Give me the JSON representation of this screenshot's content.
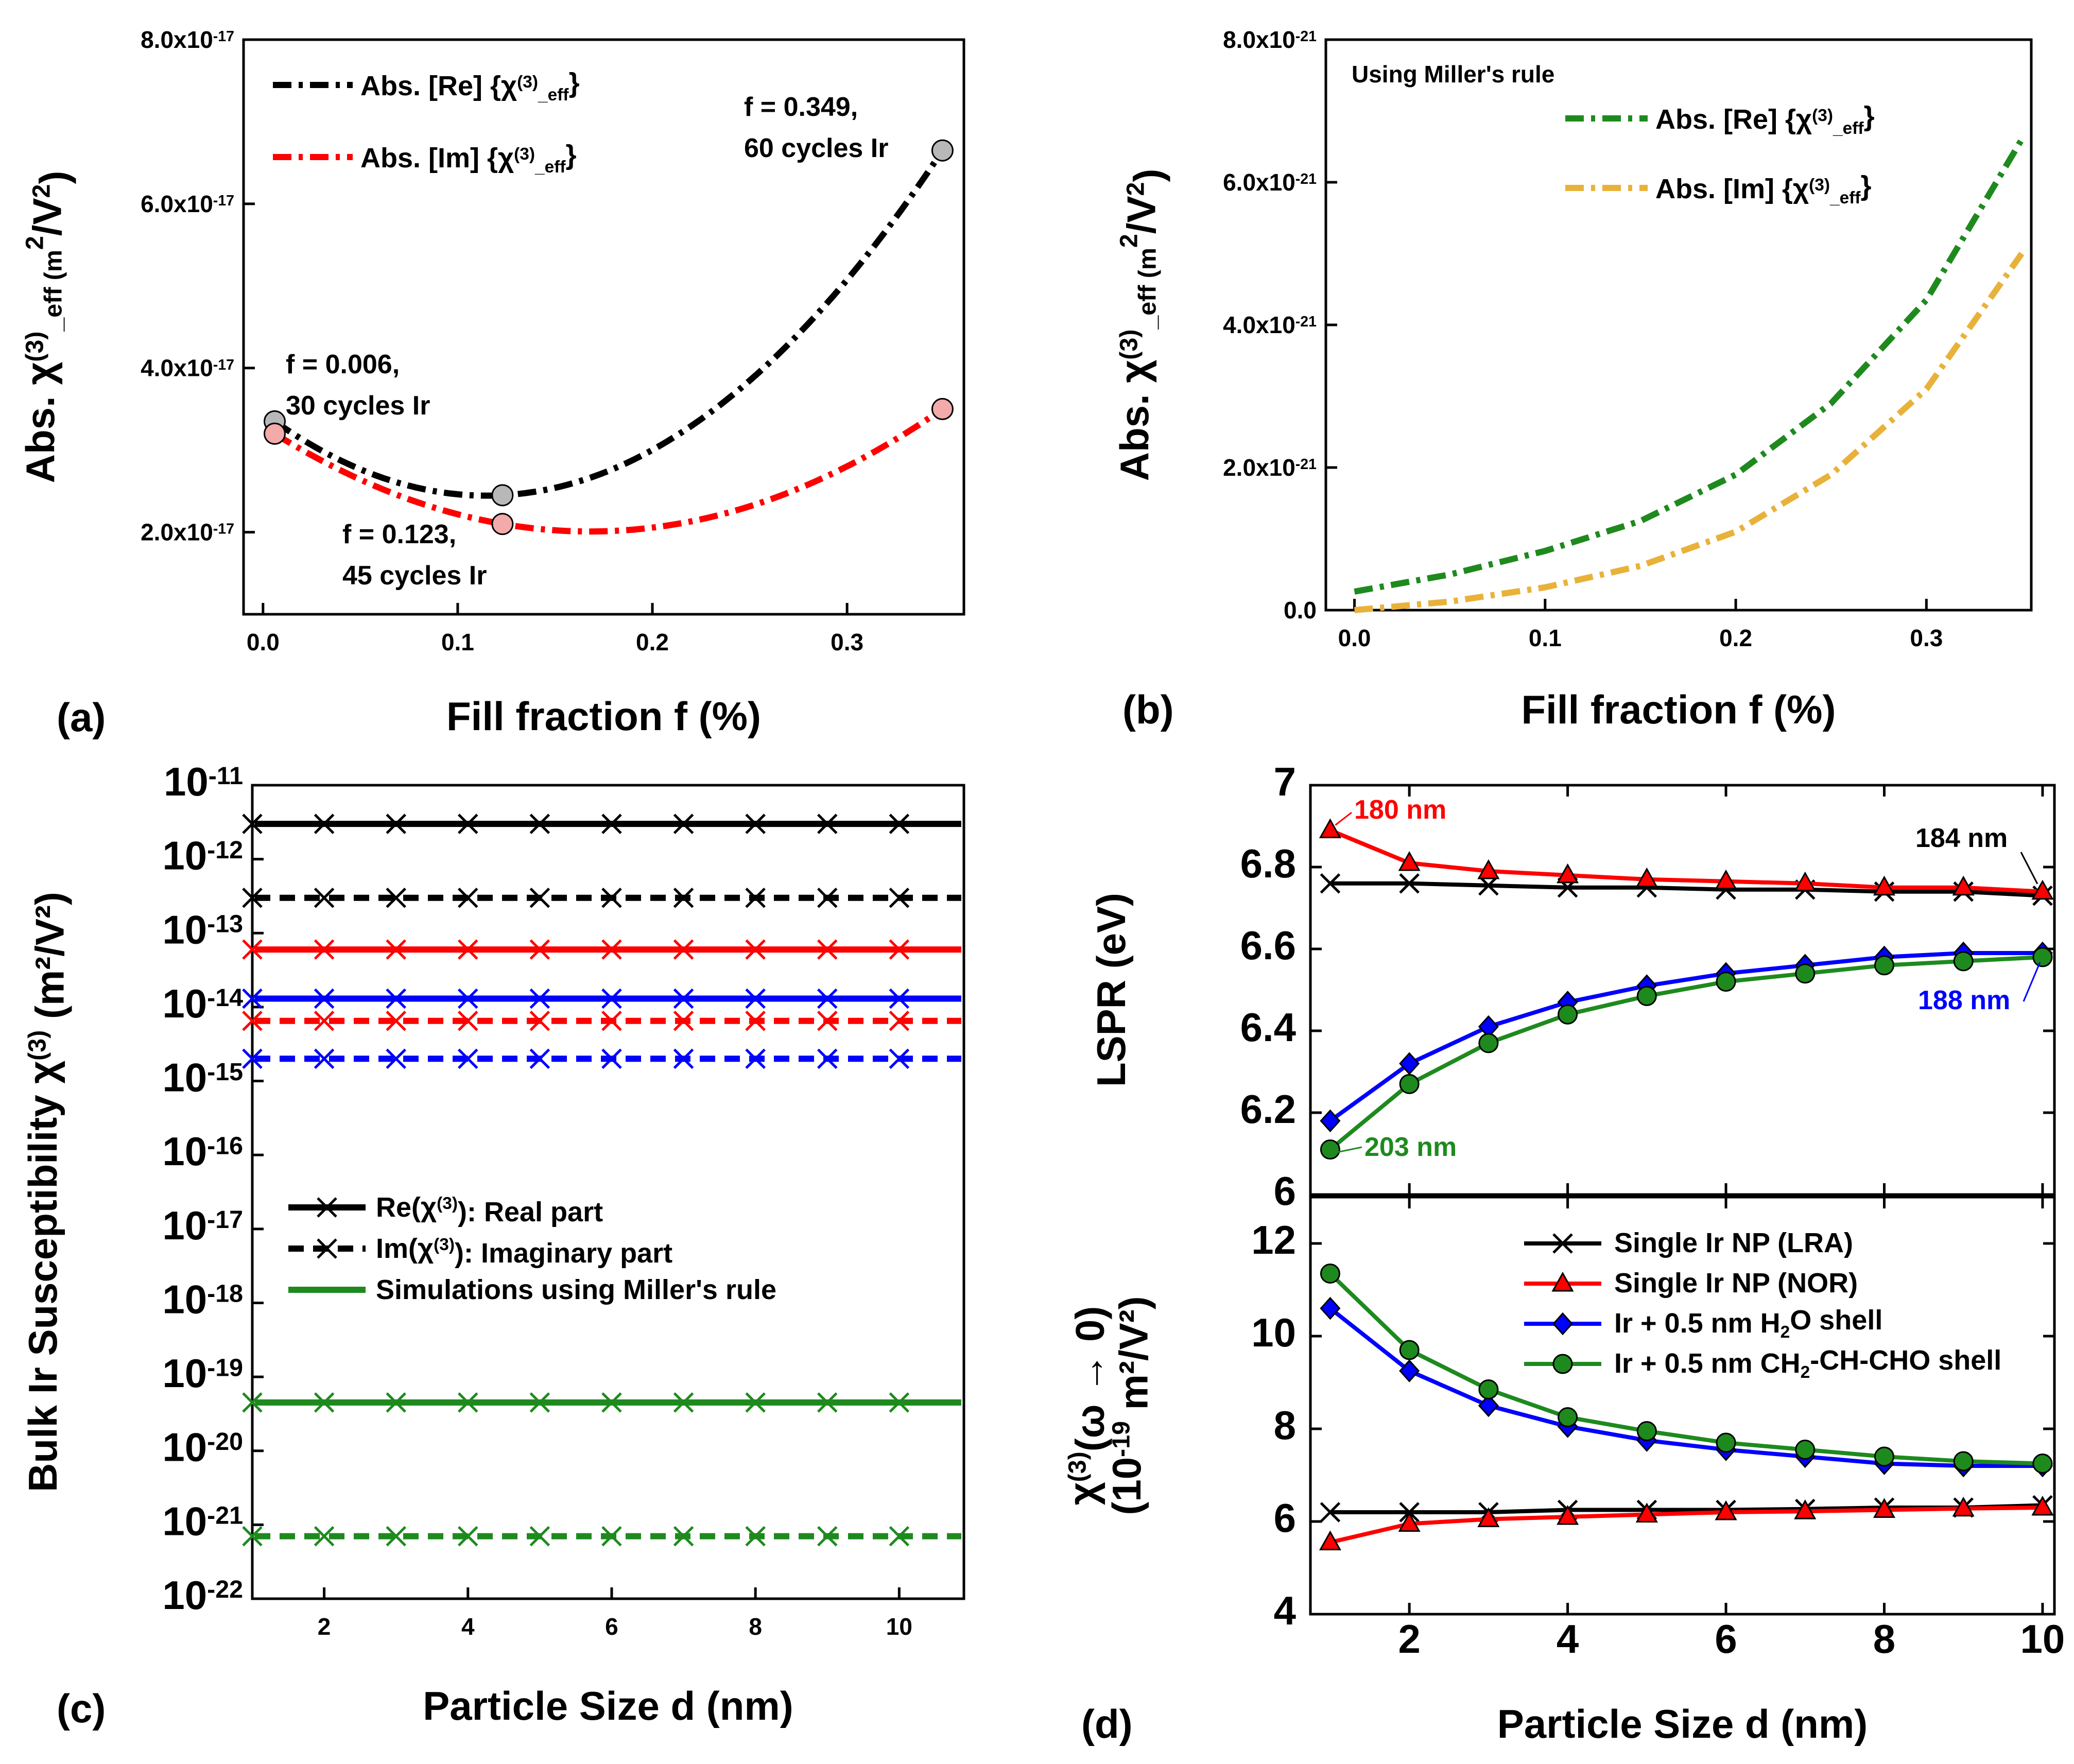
{
  "chart_data": [
    {
      "panel": "(a)",
      "type": "line",
      "xlabel": "Fill fraction f (%)",
      "ylabel": "Abs. χ(3)_eff (m2/V2)",
      "ylabel_main": "Abs. χ",
      "ylabel_sup": "(3)",
      "ylabel_tail": "_eff (m",
      "ylabel_sup2": "2",
      "ylabel_mid": "/V",
      "ylabel_sup3": "2",
      "ylabel_end": ")",
      "xlim": [
        -0.01,
        0.36
      ],
      "ylim": [
        1e-17,
        8e-17
      ],
      "xticks": [
        0.0,
        0.1,
        0.2,
        0.3
      ],
      "xtick_labels": [
        "0.0",
        "0.1",
        "0.2",
        "0.3"
      ],
      "yticks": [
        2e-17,
        4e-17,
        6e-17,
        8e-17
      ],
      "ytick_labels": [
        {
          "base": "2.0x10",
          "exp": "-17"
        },
        {
          "base": "4.0x10",
          "exp": "-17"
        },
        {
          "base": "6.0x10",
          "exp": "-17"
        },
        {
          "base": "8.0x10",
          "exp": "-17"
        }
      ],
      "series": [
        {
          "name": "Abs. [Re] {χ(3)_eff}",
          "legend_main": "Abs. [Re] {χ",
          "legend_sup": "(3)",
          "legend_sub": "_eff",
          "legend_end": "}",
          "color": "#000000",
          "points": [
            [
              0.006,
              3.35e-17
            ],
            [
              0.123,
              2.45e-17
            ],
            [
              0.349,
              6.65e-17
            ]
          ]
        },
        {
          "name": "Abs. [Im] {χ(3)_eff}",
          "legend_main": "Abs. [Im] {χ",
          "legend_sup": "(3)",
          "legend_sub": "_eff",
          "legend_end": "}",
          "color": "#ff0000",
          "points": [
            [
              0.006,
              3.2e-17
            ],
            [
              0.123,
              2.1e-17
            ],
            [
              0.349,
              3.5e-17
            ]
          ]
        }
      ],
      "annotations": [
        {
          "line1": "f = 0.006,",
          "line2": "30 cycles Ir"
        },
        {
          "line1": "f = 0.123,",
          "line2": "45 cycles Ir"
        },
        {
          "line1": "f = 0.349,",
          "line2": "60 cycles Ir"
        }
      ]
    },
    {
      "panel": "(b)",
      "type": "line",
      "title_note": "Using Miller's rule",
      "xlabel": "Fill fraction f (%)",
      "ylabel": "Abs. χ(3)_eff (m2/V2)",
      "xlim": [
        -0.015,
        0.355
      ],
      "ylim": [
        0.0,
        8e-21
      ],
      "xticks": [
        0.0,
        0.1,
        0.2,
        0.3
      ],
      "xtick_labels": [
        "0.0",
        "0.1",
        "0.2",
        "0.3"
      ],
      "yticks": [
        0.0,
        2e-21,
        4e-21,
        6e-21,
        8e-21
      ],
      "ytick_labels": [
        {
          "base": "0.0",
          "exp": ""
        },
        {
          "base": "2.0x10",
          "exp": "-21"
        },
        {
          "base": "4.0x10",
          "exp": "-21"
        },
        {
          "base": "6.0x10",
          "exp": "-21"
        },
        {
          "base": "8.0x10",
          "exp": "-21"
        }
      ],
      "series": [
        {
          "name": "Abs. [Re] {χ(3)_eff}",
          "legend_main": "Abs. [Re] {χ",
          "legend_sup": "(3)",
          "legend_sub": "_eff",
          "legend_end": "}",
          "color": "#1e8a1e",
          "x": [
            0.0,
            0.05,
            0.1,
            0.15,
            0.2,
            0.25,
            0.3,
            0.35
          ],
          "y": [
            2.6e-22,
            5e-22,
            8.3e-22,
            1.25e-21,
            1.9e-21,
            2.9e-21,
            4.35e-21,
            6.6e-21
          ]
        },
        {
          "name": "Abs. [Im] {χ(3)_eff}",
          "legend_main": "Abs. [Im] {χ",
          "legend_sup": "(3)",
          "legend_sub": "_eff",
          "legend_end": "}",
          "color": "#e8b23a",
          "x": [
            0.0,
            0.05,
            0.1,
            0.15,
            0.2,
            0.25,
            0.3,
            0.35
          ],
          "y": [
            0.0,
            1.2e-22,
            3.2e-22,
            6.2e-22,
            1.1e-21,
            1.9e-21,
            3.1e-21,
            5e-21
          ]
        }
      ]
    },
    {
      "panel": "(c)",
      "type": "line",
      "yscale": "log",
      "xlabel": "Particle Size d (nm)",
      "ylabel": "Bulk Ir Susceptibility χ(3) (m²/V²)",
      "ylabel_main": "Bulk Ir Susceptibility χ",
      "ylabel_sup": "(3)",
      "ylabel_end": " (m²/V²)",
      "xlim": [
        1.0,
        10.9
      ],
      "ylim_exp": [
        -22,
        -11
      ],
      "xticks": [
        2,
        4,
        6,
        8,
        10
      ],
      "xtick_labels": [
        "2",
        "4",
        "6",
        "8",
        "10"
      ],
      "ytick_exps": [
        -11,
        -12,
        -13,
        -14,
        -15,
        -16,
        -17,
        -18,
        -19,
        -20,
        -21,
        -22
      ],
      "ytick_base": "10",
      "x": [
        1,
        2,
        3,
        4,
        5,
        6,
        7,
        8,
        9,
        10
      ],
      "series": [
        {
          "name": "Re black",
          "color": "#000000",
          "style": "solid",
          "value": 3e-12
        },
        {
          "name": "Im black",
          "color": "#000000",
          "style": "dash",
          "value": 3e-13
        },
        {
          "name": "Re red",
          "color": "#ff0000",
          "style": "solid",
          "value": 6e-14
        },
        {
          "name": "Re blue",
          "color": "#0000ff",
          "style": "solid",
          "value": 1.3e-14
        },
        {
          "name": "Im red",
          "color": "#ff0000",
          "style": "dash",
          "value": 6.5e-15
        },
        {
          "name": "Im blue",
          "color": "#0000ff",
          "style": "dash",
          "value": 2e-15
        },
        {
          "name": "Re green (Miller)",
          "color": "#1e8a1e",
          "style": "solid",
          "value": 4.5e-20
        },
        {
          "name": "Im green (Miller)",
          "color": "#1e8a1e",
          "style": "dash",
          "value": 7e-22
        }
      ],
      "legend": [
        {
          "main": "Re(χ",
          "sup": "(3)",
          "end": "): Real part",
          "kind": "solid-x",
          "color": "#000000"
        },
        {
          "main": "Im(χ",
          "sup": "(3)",
          "end": "): Imaginary part",
          "kind": "dash-x",
          "color": "#000000"
        },
        {
          "main": "Simulations using Miller's rule",
          "sup": "",
          "end": "",
          "kind": "solid",
          "color": "#1e8a1e"
        }
      ]
    },
    {
      "panel": "(d) top",
      "type": "line",
      "ylabel": "LSPR (eV)",
      "xlim": [
        0.75,
        10.15
      ],
      "ylim": [
        6.0,
        7.0
      ],
      "yticks": [
        6.0,
        6.2,
        6.4,
        6.6,
        6.8,
        7.0
      ],
      "ytick_labels": [
        "6",
        "6.2",
        "6.4",
        "6.6",
        "6.8",
        "7"
      ],
      "x": [
        1,
        2,
        3,
        4,
        5,
        6,
        7,
        8,
        9,
        10
      ],
      "series": [
        {
          "name": "Single Ir NP (LRA)",
          "color": "#000000",
          "marker": "x",
          "values": [
            6.76,
            6.76,
            6.755,
            6.75,
            6.75,
            6.745,
            6.745,
            6.74,
            6.74,
            6.73
          ]
        },
        {
          "name": "Single Ir NP (NOR)",
          "color": "#ff0000",
          "marker": "triangle",
          "values": [
            6.89,
            6.81,
            6.79,
            6.78,
            6.77,
            6.765,
            6.76,
            6.75,
            6.75,
            6.74
          ]
        },
        {
          "name": "Ir + 0.5 nm H2O shell",
          "color": "#0000ff",
          "marker": "diamond",
          "values": [
            6.18,
            6.32,
            6.41,
            6.47,
            6.51,
            6.54,
            6.56,
            6.58,
            6.59,
            6.59
          ]
        },
        {
          "name": "Ir + 0.5 nm CH2-CH-CHO shell",
          "color": "#1e8a1e",
          "marker": "circle",
          "values": [
            6.11,
            6.27,
            6.37,
            6.44,
            6.485,
            6.52,
            6.54,
            6.56,
            6.57,
            6.58
          ]
        }
      ],
      "annotations": [
        {
          "text": "180 nm",
          "color": "#ff0000"
        },
        {
          "text": "184 nm",
          "color": "#000000"
        },
        {
          "text": "188 nm",
          "color": "#0000ff"
        },
        {
          "text": "203 nm",
          "color": "#1e8a1e"
        }
      ]
    },
    {
      "panel": "(d) bottom",
      "type": "line",
      "xlabel": "Particle Size d (nm)",
      "ylabel": "χ(3)(ω → 0) (10-19 m²/V²)",
      "ylabel_line1_main": "χ",
      "ylabel_line1_sup": "(3)",
      "ylabel_line1_end": "(ω → 0)",
      "ylabel_line2_main": "(10",
      "ylabel_line2_sup": "-19",
      "ylabel_line2_end": " m²/V²)",
      "xlim": [
        0.75,
        10.15
      ],
      "ylim": [
        4,
        13
      ],
      "xticks": [
        2,
        4,
        6,
        8,
        10
      ],
      "xtick_labels": [
        "2",
        "4",
        "6",
        "8",
        "10"
      ],
      "yticks": [
        4,
        6,
        8,
        10,
        12
      ],
      "ytick_labels": [
        "4",
        "6",
        "8",
        "10",
        "12"
      ],
      "x": [
        1,
        2,
        3,
        4,
        5,
        6,
        7,
        8,
        9,
        10
      ],
      "series": [
        {
          "name": "Single Ir NP (LRA)",
          "legend_main": "Single Ir NP (LRA)",
          "legend_sub": "",
          "legend_mid": "",
          "legend_sub2": "",
          "legend_end": "",
          "color": "#000000",
          "marker": "x",
          "values": [
            6.2,
            6.2,
            6.2,
            6.25,
            6.25,
            6.25,
            6.27,
            6.3,
            6.3,
            6.35
          ]
        },
        {
          "name": "Single Ir NP (NOR)",
          "legend_main": "Single Ir NP (NOR)",
          "legend_sub": "",
          "legend_mid": "",
          "legend_sub2": "",
          "legend_end": "",
          "color": "#ff0000",
          "marker": "triangle",
          "values": [
            5.55,
            5.95,
            6.05,
            6.1,
            6.15,
            6.2,
            6.22,
            6.25,
            6.28,
            6.3
          ]
        },
        {
          "name": "Ir + 0.5 nm H2O shell",
          "legend_main": "Ir + 0.5 nm H",
          "legend_sub": "2",
          "legend_mid": "O shell",
          "legend_sub2": "",
          "legend_end": "",
          "color": "#0000ff",
          "marker": "diamond",
          "values": [
            10.6,
            9.25,
            8.5,
            8.05,
            7.75,
            7.55,
            7.4,
            7.25,
            7.2,
            7.2
          ]
        },
        {
          "name": "Ir + 0.5 nm CH2-CH-CHO shell",
          "legend_main": "Ir + 0.5 nm CH",
          "legend_sub": "2",
          "legend_mid": "-CH-CHO shell",
          "legend_sub2": "",
          "legend_end": "",
          "color": "#1e8a1e",
          "marker": "circle",
          "values": [
            11.35,
            9.7,
            8.85,
            8.25,
            7.95,
            7.7,
            7.55,
            7.4,
            7.3,
            7.25
          ]
        }
      ]
    }
  ],
  "panel_letters": {
    "a": "(a)",
    "b": "(b)",
    "c": "(c)",
    "d": "(d)"
  }
}
